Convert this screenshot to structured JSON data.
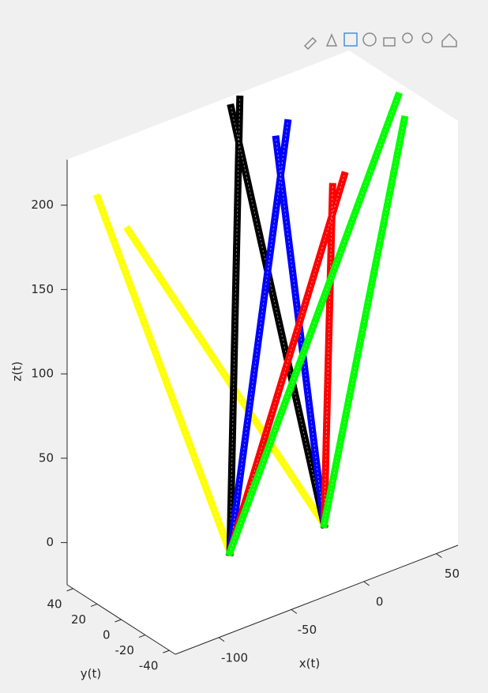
{
  "chart_data": {
    "type": "line3d",
    "xlabel": "x(t)",
    "ylabel": "y(t)",
    "zlabel": "z(t)",
    "xlim": [
      -130,
      65
    ],
    "ylim": [
      -45,
      45
    ],
    "zlim": [
      -25,
      227
    ],
    "xticks": [
      -100,
      -50,
      0,
      50
    ],
    "yticks": [
      -40,
      -20,
      0,
      20,
      40
    ],
    "zticks": [
      0,
      50,
      100,
      150,
      200
    ],
    "series": [
      {
        "color": "#ffff00",
        "x": [
          -113,
          -55,
          null,
          -92,
          10
        ],
        "y": [
          40,
          0,
          null,
          40,
          0
        ],
        "z": [
          201,
          -10,
          null,
          175,
          -15
        ]
      },
      {
        "color": "#000000",
        "x": [
          -21,
          10,
          null,
          -15,
          -55
        ],
        "y": [
          40,
          0,
          null,
          40,
          0
        ],
        "z": [
          224,
          -15,
          null,
          227,
          -10
        ]
      },
      {
        "color": "#0000ff",
        "x": [
          10,
          10,
          null,
          18,
          -55
        ],
        "y": [
          40,
          0,
          null,
          40,
          0
        ],
        "z": [
          195,
          -15,
          null,
          202,
          -10
        ]
      },
      {
        "color": "#ff0000",
        "x": [
          49,
          10,
          null,
          57,
          -55
        ],
        "y": [
          40,
          0,
          null,
          40,
          0
        ],
        "z": [
          154,
          -15,
          null,
          158,
          -10
        ]
      },
      {
        "color": "#00ff00",
        "x": [
          61,
          -55,
          null,
          57,
          10
        ],
        "y": [
          0,
          0,
          null,
          -10,
          0
        ],
        "z": [
          222,
          -10,
          null,
          214,
          -15
        ]
      }
    ]
  }
}
